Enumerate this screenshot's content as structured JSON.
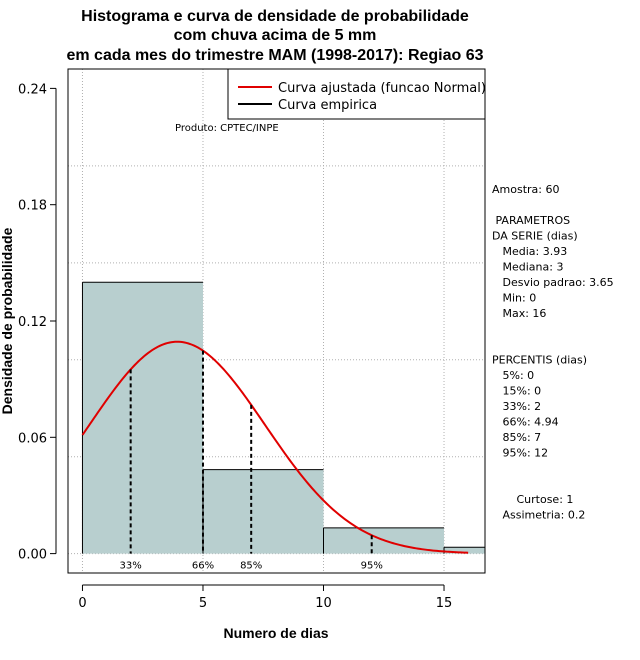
{
  "chart_data": {
    "type": "bar",
    "title_lines": [
      "Histograma e curva de densidade de probabilidade",
      "com chuva acima de 5 mm",
      "em cada mes do trimestre MAM (1998-2017): Regiao 63"
    ],
    "xlabel": "Numero de dias",
    "ylabel": "Densidade de probabilidade",
    "xlim": [
      -0.6,
      16.7
    ],
    "ylim": [
      -0.01,
      0.25
    ],
    "x_ticks": [
      0,
      5,
      10,
      15
    ],
    "x_tick_labels": [
      "0",
      "5",
      "10",
      "15"
    ],
    "y_ticks": [
      0.0,
      0.06,
      0.12,
      0.18,
      0.24
    ],
    "y_tick_labels": [
      "0.00",
      "0.06",
      "0.12",
      "0.18",
      "0.24"
    ],
    "grid_x": [
      0,
      5,
      10,
      15
    ],
    "grid_y": [
      0.0,
      0.05,
      0.1,
      0.15,
      0.2
    ],
    "grid": true,
    "bars": [
      {
        "x0": 0,
        "x1": 5,
        "value": 0.14
      },
      {
        "x0": 5,
        "x1": 10,
        "value": 0.0433
      },
      {
        "x0": 10,
        "x1": 15,
        "value": 0.0133
      },
      {
        "x0": 15,
        "x1": 20,
        "value": 0.0033
      }
    ],
    "bar_color": "#b8cfcf",
    "normal_curve": {
      "mean": 3.93,
      "sd": 3.65,
      "x_range": [
        0,
        16
      ],
      "color": "#e00000"
    },
    "percentile_lines": [
      {
        "x": 2,
        "label": "33%"
      },
      {
        "x": 5,
        "label": "66%"
      },
      {
        "x": 7,
        "label": "85%"
      },
      {
        "x": 12,
        "label": "95%"
      }
    ],
    "legend": {
      "position": "top-right",
      "entries": [
        {
          "label": "Curva ajustada (funcao Normal)",
          "color": "#e00000"
        },
        {
          "label": "Curva empirica",
          "color": "#000000"
        }
      ]
    },
    "annotation": "Produto: CPTEC/INPE",
    "side_panel": [
      "Amostra: 60",
      "",
      " PARAMETROS",
      "DA SERIE (dias)",
      "   Media: 3.93",
      "   Mediana: 3",
      "   Desvio padrao: 3.65",
      "   Min: 0",
      "   Max: 16",
      "",
      "",
      "PERCENTIS (dias)",
      "   5%: 0",
      "   15%: 0",
      "   33%: 2",
      "   66%: 4.94",
      "   85%: 7",
      "   95%: 12",
      "",
      "",
      "       Curtose: 1",
      "   Assimetria: 0.2"
    ]
  }
}
